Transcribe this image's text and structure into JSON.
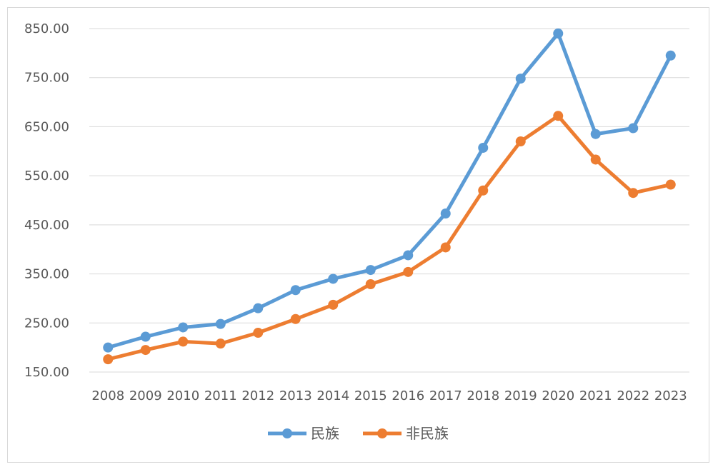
{
  "chart_data": {
    "type": "line",
    "title": "",
    "xlabel": "",
    "ylabel": "",
    "ylim": [
      150,
      850
    ],
    "yticks": [
      150,
      250,
      350,
      450,
      550,
      650,
      750,
      850
    ],
    "ytick_labels": [
      "150.00",
      "250.00",
      "350.00",
      "450.00",
      "550.00",
      "650.00",
      "750.00",
      "850.00"
    ],
    "categories": [
      "2008",
      "2009",
      "2010",
      "2011",
      "2012",
      "2013",
      "2014",
      "2015",
      "2016",
      "2017",
      "2018",
      "2019",
      "2020",
      "2021",
      "2022",
      "2023"
    ],
    "grid": true,
    "legend_position": "bottom",
    "series": [
      {
        "name": "民族",
        "color": "#5B9BD5",
        "values": [
          200,
          222,
          241,
          248,
          280,
          317,
          340,
          358,
          388,
          473,
          607,
          748,
          840,
          635,
          647,
          795
        ]
      },
      {
        "name": "非民族",
        "color": "#ED7D31",
        "values": [
          176,
          195,
          212,
          208,
          230,
          258,
          287,
          329,
          354,
          404,
          520,
          620,
          672,
          583,
          515,
          532
        ]
      }
    ]
  }
}
